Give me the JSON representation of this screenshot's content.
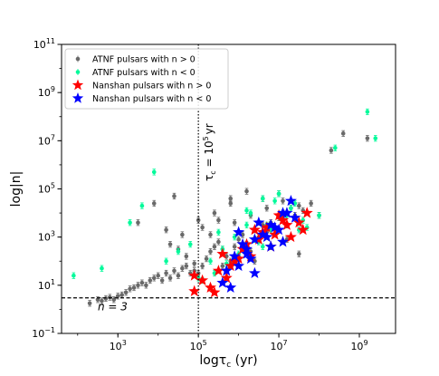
{
  "chart_data": {
    "type": "scatter",
    "title": "",
    "xlabel": "logτ",
    "xlabel_sub": "c",
    "xlabel_suffix": " (yr)",
    "ylabel": "log|n|",
    "x_log": true,
    "y_log": true,
    "xlim_exp": [
      1.6,
      9.9
    ],
    "ylim_exp": [
      -1,
      11
    ],
    "x_ticks": [
      {
        "exp": 3,
        "base": "10",
        "sup": "3"
      },
      {
        "exp": 5,
        "base": "10",
        "sup": "5"
      },
      {
        "exp": 7,
        "base": "10",
        "sup": "7"
      },
      {
        "exp": 9,
        "base": "10",
        "sup": "9"
      }
    ],
    "y_ticks": [
      {
        "exp": -1,
        "base": "10",
        "sup": "−1"
      },
      {
        "exp": 1,
        "base": "10",
        "sup": "1"
      },
      {
        "exp": 3,
        "base": "10",
        "sup": "3"
      },
      {
        "exp": 5,
        "base": "10",
        "sup": "5"
      },
      {
        "exp": 7,
        "base": "10",
        "sup": "7"
      },
      {
        "exp": 9,
        "base": "10",
        "sup": "9"
      },
      {
        "exp": 11,
        "base": "10",
        "sup": "11"
      }
    ],
    "grid": false,
    "legend_position": "top-left",
    "legend": [
      {
        "label": "ATNF pulsars with n > 0",
        "marker": "circle",
        "color": "#696969"
      },
      {
        "label": "ATNF pulsars with n < 0",
        "marker": "circle",
        "color": "#00fa9a"
      },
      {
        "label": "Nanshan pulsars with n > 0",
        "marker": "star",
        "color": "#ff0000"
      },
      {
        "label": "Nanshan pulsars with n < 0",
        "marker": "star",
        "color": "#0000ff"
      }
    ],
    "annotations": {
      "vline_label": "τ",
      "vline_label_sub": "c",
      "vline_label_eq": " = 10",
      "vline_label_sup": "5",
      "vline_label_unit": "yr",
      "hline_label": "n = 3",
      "vline_x_exp": 5,
      "hline_y_exp": 0.477
    },
    "series": [
      {
        "name": "ATNF pulsars with n > 0",
        "color": "#696969",
        "marker": "circle",
        "x_exp": [
          2.3,
          2.5,
          2.6,
          2.7,
          2.8,
          2.9,
          3.0,
          3.1,
          3.2,
          3.3,
          3.4,
          3.5,
          3.6,
          3.7,
          3.8,
          3.9,
          4.0,
          4.1,
          4.2,
          4.3,
          4.4,
          4.5,
          4.6,
          4.7,
          4.8,
          4.9,
          4.3,
          4.5,
          4.7,
          4.9,
          5.0,
          5.1,
          5.2,
          5.3,
          5.4,
          5.5,
          5.6,
          5.7,
          5.8,
          5.9,
          6.0,
          6.1,
          6.2,
          6.3,
          6.4,
          6.5,
          6.6,
          6.7,
          6.8,
          6.9,
          7.0,
          7.1,
          7.2,
          7.3,
          7.4,
          7.5,
          7.6,
          5.1,
          5.3,
          5.5,
          5.8,
          6.2,
          6.6,
          7.0,
          4.2,
          4.6,
          5.0,
          3.5,
          3.9,
          4.4,
          8.3,
          8.6,
          9.2,
          7.8,
          8.0,
          5.6,
          6.0,
          6.4,
          6.8,
          7.2,
          5.9,
          6.3,
          6.7,
          7.1,
          7.5,
          5.4,
          5.8,
          6.5
        ],
        "y_exp": [
          0.25,
          0.4,
          0.35,
          0.45,
          0.5,
          0.4,
          0.55,
          0.6,
          0.7,
          0.85,
          0.9,
          1.0,
          1.1,
          1.0,
          1.2,
          1.3,
          1.4,
          1.2,
          1.5,
          1.3,
          1.6,
          1.4,
          1.7,
          1.8,
          1.5,
          1.6,
          2.7,
          2.5,
          2.2,
          1.9,
          1.5,
          1.8,
          2.1,
          2.4,
          2.6,
          2.8,
          2.5,
          2.2,
          2.0,
          2.6,
          2.9,
          3.1,
          2.7,
          2.4,
          3.3,
          3.0,
          3.5,
          3.2,
          3.6,
          3.3,
          3.8,
          4.0,
          3.5,
          4.2,
          3.9,
          4.3,
          4.1,
          3.4,
          3.1,
          3.7,
          4.4,
          4.9,
          4.6,
          4.8,
          3.3,
          3.1,
          3.7,
          3.6,
          4.4,
          4.7,
          6.6,
          7.3,
          7.1,
          4.4,
          3.9,
          1.8,
          2.2,
          2.0,
          2.6,
          2.9,
          3.6,
          3.9,
          4.2,
          4.5,
          2.3,
          4.0,
          4.6,
          3.0
        ]
      },
      {
        "name": "ATNF pulsars with n < 0",
        "color": "#00fa9a",
        "marker": "circle",
        "x_exp": [
          1.9,
          2.6,
          3.3,
          3.6,
          3.9,
          4.2,
          4.5,
          4.8,
          5.0,
          5.3,
          5.6,
          5.9,
          6.2,
          6.5,
          6.8,
          7.1,
          7.4,
          7.7,
          8.0,
          5.4,
          5.7,
          6.0,
          6.3,
          6.6,
          6.9,
          7.2,
          7.5,
          5.8,
          6.1,
          6.4,
          6.7,
          7.0,
          7.3,
          8.4,
          9.2,
          9.4,
          5.5,
          6.2,
          6.6,
          7.6,
          5.1
        ],
        "y_exp": [
          1.4,
          1.7,
          3.6,
          4.3,
          5.7,
          2.0,
          2.4,
          2.7,
          1.3,
          2.0,
          2.5,
          3.0,
          3.5,
          2.8,
          3.3,
          3.8,
          4.4,
          3.4,
          3.9,
          1.5,
          1.9,
          2.3,
          4.0,
          4.6,
          4.5,
          3.9,
          3.3,
          1.8,
          2.6,
          2.9,
          3.5,
          4.8,
          4.2,
          6.7,
          8.2,
          7.1,
          3.2,
          4.1,
          2.6,
          3.7,
          1.2
        ]
      },
      {
        "name": "Nanshan pulsars with n > 0",
        "color": "#ff0000",
        "marker": "star",
        "x_exp": [
          4.9,
          5.1,
          5.3,
          5.5,
          5.7,
          5.9,
          6.1,
          6.3,
          6.5,
          6.7,
          6.9,
          7.1,
          7.3,
          7.5,
          7.7,
          5.4,
          5.8,
          6.2,
          6.6,
          7.0,
          5.6,
          6.0,
          6.4,
          6.8,
          7.2,
          7.6,
          4.9
        ],
        "y_exp": [
          1.4,
          1.2,
          0.9,
          1.6,
          1.3,
          2.0,
          2.5,
          2.2,
          2.9,
          3.4,
          3.1,
          3.7,
          3.0,
          3.6,
          4.0,
          0.7,
          1.8,
          2.7,
          3.2,
          3.9,
          2.3,
          2.1,
          3.3,
          2.6,
          3.5,
          3.3,
          0.75
        ]
      },
      {
        "name": "Nanshan pulsars with n < 0",
        "color": "#0000ff",
        "marker": "star",
        "x_exp": [
          5.6,
          5.8,
          6.0,
          6.2,
          6.4,
          6.6,
          6.8,
          7.0,
          7.2,
          7.4,
          5.9,
          6.1,
          6.3,
          6.5,
          6.7,
          6.9,
          7.1,
          5.7,
          6.2,
          6.8,
          7.3,
          6.4,
          6.0,
          7.1
        ],
        "y_exp": [
          1.1,
          0.9,
          1.8,
          2.5,
          2.9,
          3.1,
          3.5,
          3.3,
          4.0,
          3.8,
          2.2,
          2.7,
          2.1,
          3.6,
          3.0,
          3.4,
          2.8,
          1.6,
          2.3,
          2.6,
          4.5,
          1.5,
          3.2,
          4.0
        ]
      }
    ]
  }
}
